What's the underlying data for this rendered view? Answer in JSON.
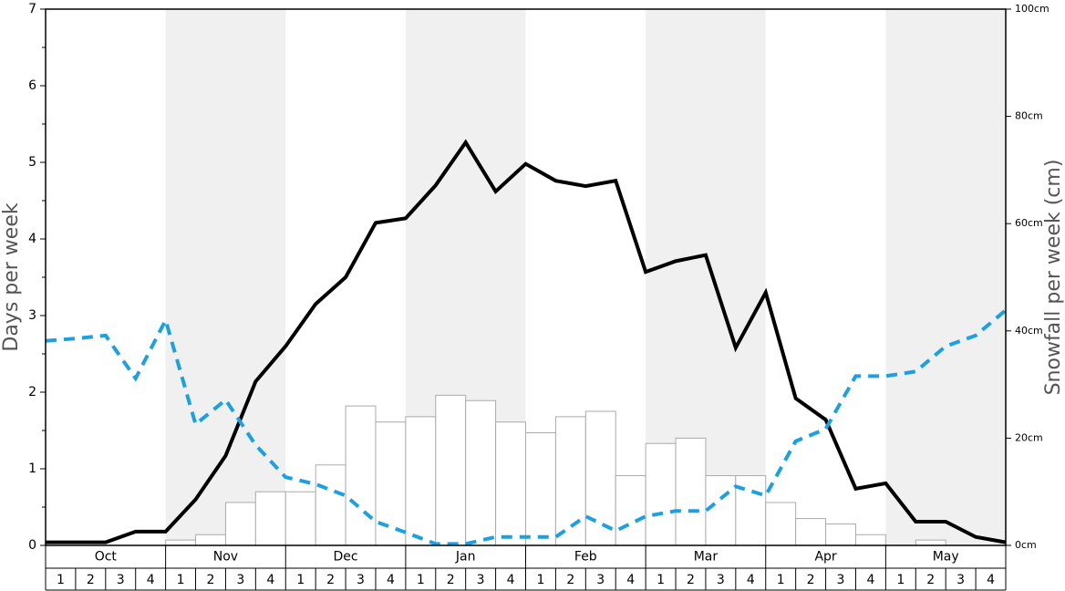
{
  "chart_data": {
    "type": "bar",
    "ylabel": "Days per week",
    "y2label": "Snowfall per week (cm)",
    "months": [
      "Oct",
      "Nov",
      "Dec",
      "Jan",
      "Feb",
      "Mar",
      "Apr",
      "May"
    ],
    "weeks": [
      1,
      2,
      3,
      4
    ],
    "ylim": [
      0,
      7
    ],
    "yticks": [
      0,
      1,
      2,
      3,
      4,
      5,
      6,
      7
    ],
    "yminorticks": [
      0.5,
      1.5,
      2.5,
      3.5,
      4.5,
      5.5,
      6.5
    ],
    "y2lim": [
      0,
      100
    ],
    "y2ticks": [
      {
        "value": 0,
        "label": "0cm"
      },
      {
        "value": 20,
        "label": "20cm"
      },
      {
        "value": 40,
        "label": "40cm"
      },
      {
        "value": 60,
        "label": "60cm"
      },
      {
        "value": 80,
        "label": "80cm"
      },
      {
        "value": 100,
        "label": "100cm"
      }
    ],
    "band_color": "#f0f0f0",
    "bars": {
      "axis": "y2",
      "color": "#ffffff",
      "edge": "#aaaaaa",
      "values": [
        0,
        0,
        0,
        0,
        1,
        2,
        8,
        10,
        10,
        15,
        26,
        23,
        24,
        28,
        27,
        23,
        21,
        24,
        25,
        13,
        19,
        20,
        13,
        13,
        8,
        5,
        4,
        2,
        0,
        1,
        0,
        0
      ]
    },
    "series": [
      {
        "color": "#000000",
        "dash": false,
        "values": [
          0.04,
          0.04,
          0.04,
          0.18,
          0.18,
          0.6,
          1.17,
          2.14,
          2.6,
          3.15,
          3.5,
          4.21,
          4.27,
          4.7,
          5.26,
          4.62,
          4.98,
          4.76,
          4.69,
          4.76,
          3.57,
          3.71,
          3.79,
          2.58,
          3.3,
          1.92,
          1.64,
          0.74,
          0.81,
          0.31,
          0.31,
          0.11,
          0.04
        ]
      },
      {
        "color": "#1ba1e2",
        "dash": true,
        "values": [
          2.67,
          2.7,
          2.74,
          2.18,
          2.94,
          1.58,
          1.9,
          1.31,
          0.89,
          0.8,
          0.65,
          0.31,
          0.17,
          0.02,
          0.02,
          0.11,
          0.11,
          0.11,
          0.38,
          0.19,
          0.38,
          0.45,
          0.45,
          0.77,
          0.65,
          1.36,
          1.52,
          2.21,
          2.21,
          2.27,
          2.6,
          2.74,
          3.07
        ]
      }
    ]
  }
}
